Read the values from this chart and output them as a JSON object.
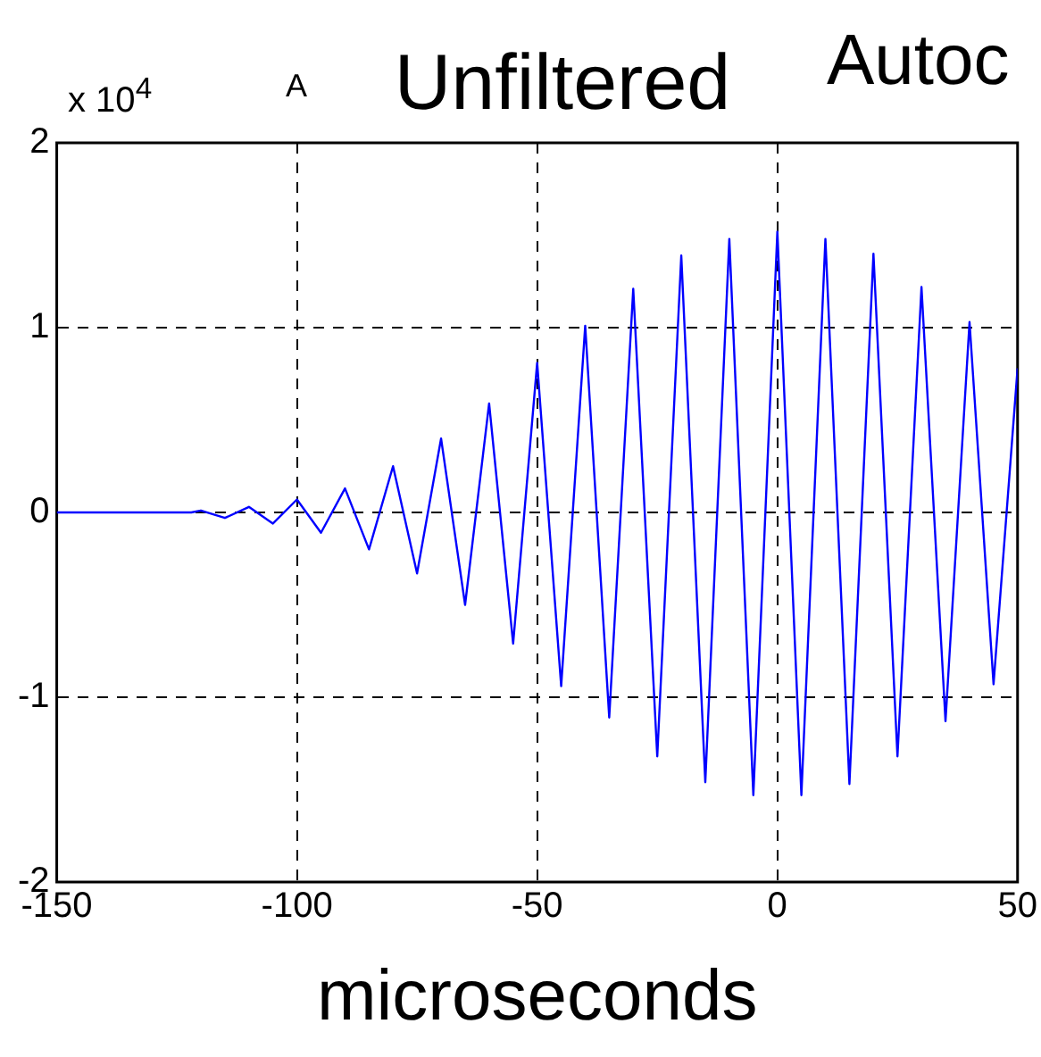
{
  "chart_data": {
    "type": "line",
    "title": "Unfiltered",
    "xlabel": "microseconds",
    "annotations": [
      "x 10$^{4}$",
      "A",
      "Autoc"
    ],
    "x": [
      -150,
      -122,
      -120,
      -115,
      -110,
      -105,
      -100,
      -95,
      -90,
      -85,
      -80,
      -75,
      -70,
      -65,
      -60,
      -55,
      -50,
      -45,
      -40,
      -35,
      -30,
      -25,
      -20,
      -15,
      -10,
      -5,
      0,
      5,
      10,
      15,
      20,
      25,
      30,
      35,
      40,
      45,
      50
    ],
    "series": [
      {
        "color": "#0000ff",
        "values": [
          0,
          0,
          0.01,
          -0.03,
          0.03,
          -0.06,
          0.07,
          -0.11,
          0.13,
          -0.2,
          0.25,
          -0.33,
          0.4,
          -0.5,
          0.59,
          -0.71,
          0.81,
          -0.94,
          1.01,
          -1.11,
          1.21,
          -1.32,
          1.39,
          -1.46,
          1.48,
          -1.53,
          1.52,
          -1.53,
          1.48,
          -1.47,
          1.4,
          -1.32,
          1.22,
          -1.13,
          1.03,
          -0.93,
          0.78
        ]
      }
    ],
    "xlim": [
      -150,
      50
    ],
    "xticks": [
      -150,
      -100,
      -50,
      0,
      50
    ],
    "ylim": [
      -2,
      2
    ],
    "yticks": [
      -2,
      -1,
      0,
      1,
      2
    ],
    "grid": true,
    "legend": false,
    "marker": "none",
    "line_style": "solid"
  }
}
